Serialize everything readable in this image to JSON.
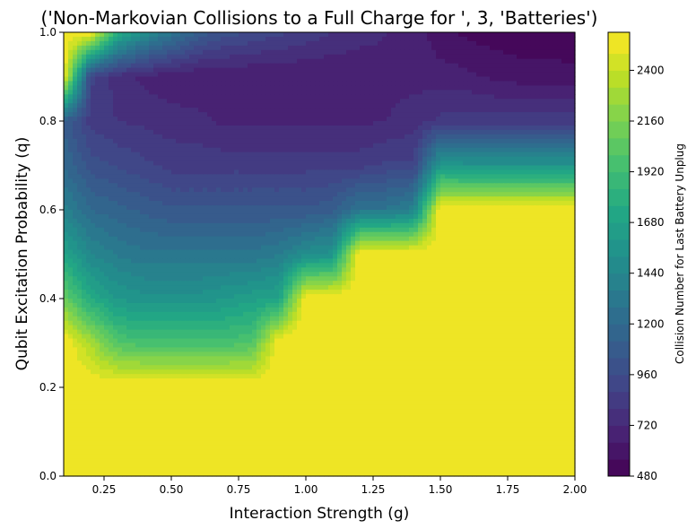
{
  "chart_data": {
    "type": "heatmap",
    "subtype": "filled-contour",
    "title": "('Non-Markovian Collisions to a Full Charge for ', 3, 'Batteries')",
    "xlabel": "Interaction Strength (g)",
    "ylabel": "Qubit Excitation Probability (q)",
    "xlim": [
      0.1,
      2.0
    ],
    "ylim": [
      0.0,
      1.0
    ],
    "xticks": [
      "0.25",
      "0.50",
      "0.75",
      "1.00",
      "1.25",
      "1.50",
      "1.75",
      "2.00"
    ],
    "xtick_values": [
      0.25,
      0.5,
      0.75,
      1.0,
      1.25,
      1.5,
      1.75,
      2.0
    ],
    "yticks": [
      "0.0",
      "0.2",
      "0.4",
      "0.6",
      "0.8",
      "1.0"
    ],
    "ytick_values": [
      0.0,
      0.2,
      0.4,
      0.6,
      0.8,
      1.0
    ],
    "colormap": "viridis",
    "colorbar": {
      "label": "Collision Number for Last Battery Unplug",
      "range": [
        480,
        2580
      ],
      "ticks": [
        "480",
        "720",
        "960",
        "1200",
        "1440",
        "1680",
        "1920",
        "2160",
        "2400"
      ],
      "tick_values": [
        480,
        720,
        960,
        1200,
        1440,
        1680,
        1920,
        2160,
        2400
      ],
      "levels": [
        480,
        560,
        640,
        720,
        800,
        880,
        960,
        1040,
        1120,
        1200,
        1280,
        1360,
        1440,
        1520,
        1600,
        1680,
        1760,
        1840,
        1920,
        2000,
        2080,
        2160,
        2240,
        2320,
        2400,
        2480,
        2580
      ]
    },
    "x": [
      0.1,
      0.2,
      0.3,
      0.4,
      0.5,
      0.6,
      0.7,
      0.8,
      0.9,
      1.0,
      1.1,
      1.2,
      1.3,
      1.4,
      1.5,
      1.6,
      1.7,
      1.8,
      1.9,
      2.0
    ],
    "y": [
      0.0,
      0.1,
      0.2,
      0.3,
      0.4,
      0.5,
      0.6,
      0.7,
      0.8,
      0.9,
      1.0
    ],
    "z": [
      [
        2580,
        2580,
        2580,
        2580,
        2580,
        2580,
        2580,
        2580,
        2580,
        2580,
        2580,
        2580,
        2580,
        2580,
        2580,
        2580,
        2580,
        2580,
        2580,
        2580
      ],
      [
        2580,
        2580,
        2580,
        2580,
        2580,
        2580,
        2580,
        2580,
        2580,
        2580,
        2580,
        2580,
        2580,
        2580,
        2580,
        2580,
        2580,
        2580,
        2580,
        2580
      ],
      [
        2580,
        2580,
        2580,
        2580,
        2580,
        2580,
        2580,
        2580,
        2580,
        2580,
        2580,
        2580,
        2580,
        2580,
        2580,
        2580,
        2580,
        2580,
        2580,
        2580
      ],
      [
        2580,
        2300,
        2000,
        1950,
        1950,
        1950,
        1950,
        2000,
        2580,
        2580,
        2580,
        2580,
        2580,
        2580,
        2580,
        2580,
        2580,
        2580,
        2580,
        2580
      ],
      [
        2100,
        1750,
        1600,
        1550,
        1550,
        1550,
        1600,
        1650,
        1700,
        2580,
        2580,
        2580,
        2580,
        2580,
        2580,
        2580,
        2580,
        2580,
        2580,
        2580
      ],
      [
        1700,
        1450,
        1350,
        1300,
        1300,
        1300,
        1300,
        1300,
        1350,
        1500,
        1550,
        2580,
        2580,
        2580,
        2580,
        2580,
        2580,
        2580,
        2580,
        2580
      ],
      [
        1400,
        1200,
        1150,
        1100,
        1050,
        1050,
        1050,
        1050,
        1050,
        1050,
        1100,
        1300,
        1300,
        1400,
        2580,
        2580,
        2580,
        2580,
        2580,
        2580
      ],
      [
        1200,
        1000,
        950,
        900,
        850,
        850,
        850,
        850,
        850,
        850,
        850,
        850,
        900,
        900,
        1600,
        1550,
        1550,
        1550,
        1550,
        1550
      ],
      [
        1100,
        850,
        800,
        780,
        760,
        750,
        700,
        700,
        700,
        700,
        700,
        700,
        720,
        760,
        820,
        840,
        840,
        840,
        840,
        840
      ],
      [
        2580,
        900,
        760,
        700,
        660,
        640,
        640,
        640,
        640,
        640,
        640,
        660,
        700,
        690,
        680,
        660,
        620,
        600,
        600,
        600
      ],
      [
        2580,
        2580,
        1800,
        1500,
        1300,
        1100,
        1000,
        950,
        900,
        850,
        800,
        750,
        720,
        700,
        580,
        540,
        520,
        500,
        490,
        480
      ]
    ]
  }
}
